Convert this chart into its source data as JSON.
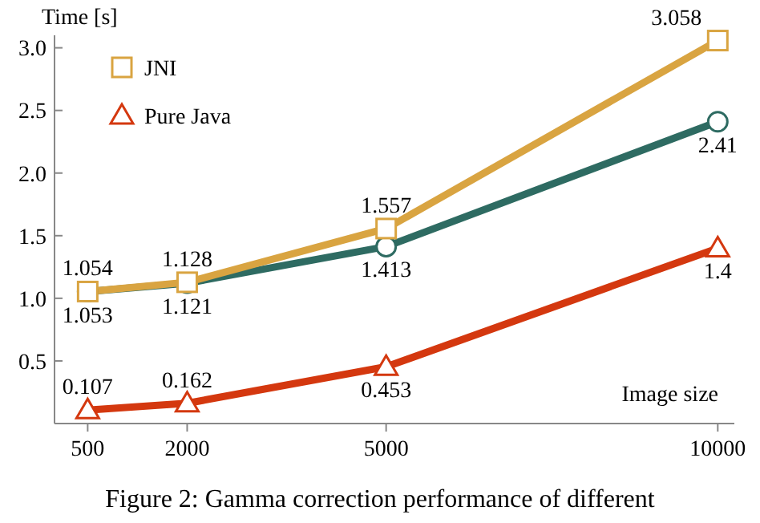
{
  "chart_data": {
    "type": "line",
    "ylabel": "Time [s]",
    "xlabel": "Image size",
    "x": [
      500,
      2000,
      5000,
      10000
    ],
    "xlim": [
      0,
      10250
    ],
    "xticks": [
      500,
      2000,
      5000,
      10000
    ],
    "ylim": [
      0,
      3.1
    ],
    "yticks": [
      0.5,
      {
        "value": 1,
        "label": "1.0"
      },
      1.5,
      {
        "value": 2,
        "label": "2.0"
      },
      2.5,
      {
        "value": 3,
        "label": "3.0"
      }
    ],
    "series": [
      {
        "color": "#2e6b62",
        "marker": "circle",
        "values": [
          1.053,
          1.121,
          1.413,
          2.41
        ]
      },
      {
        "name": "JNI",
        "color": "#d9a441",
        "marker": "square",
        "values": [
          1.054,
          1.128,
          1.557,
          3.058
        ]
      },
      {
        "name": "Pure Java",
        "color": "#d4380f",
        "marker": "triangle",
        "values": [
          0.107,
          0.162,
          0.453,
          1.4
        ]
      }
    ],
    "data_labels": true,
    "legend": "top left",
    "grid": false,
    "annotations": [
      "Figure 2: Gamma correction performance of different"
    ]
  }
}
